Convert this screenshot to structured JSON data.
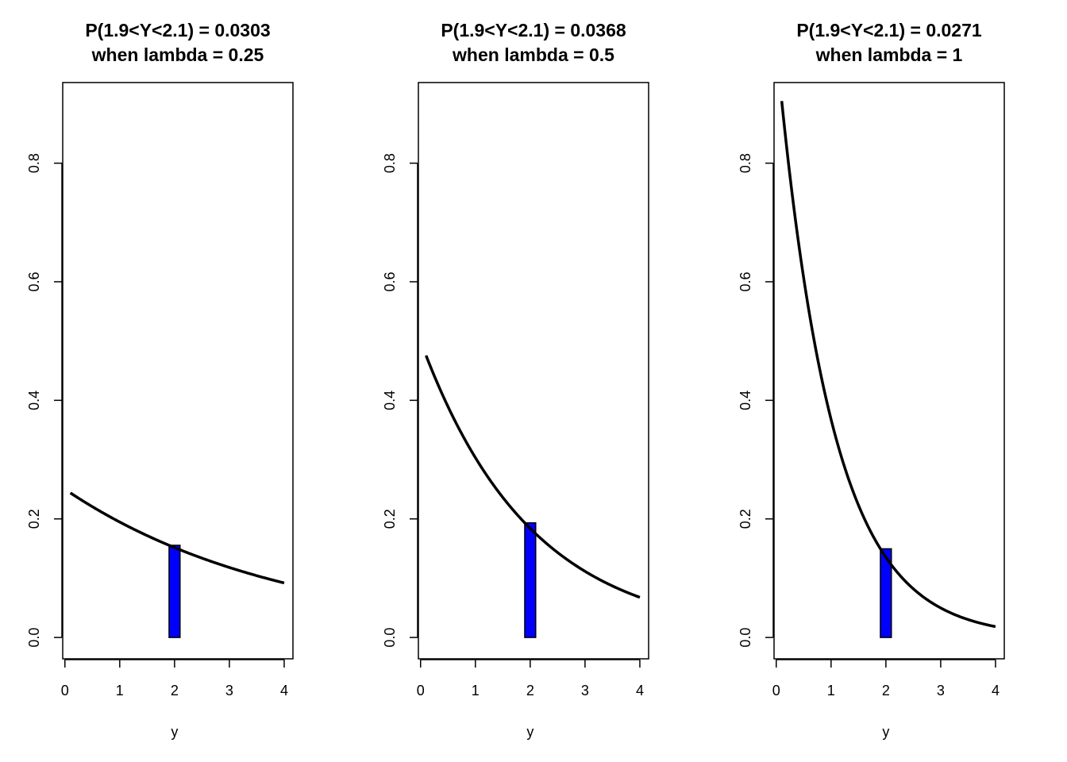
{
  "chart_data": [
    {
      "type": "line",
      "title": "P(1.9<Y<2.1) = 0.0303",
      "subtitle": "when lambda = 0.25",
      "lambda": 0.25,
      "xlabel": "y",
      "ylabel": "",
      "x_ticks": [
        "0",
        "1",
        "2",
        "3",
        "4"
      ],
      "y_ticks": [
        "0.0",
        "0.2",
        "0.4",
        "0.6",
        "0.8"
      ],
      "xlim": [
        -0.04,
        4.16
      ],
      "ylim": [
        -0.036,
        0.936
      ],
      "curve_x_range": [
        0.1,
        4.0
      ],
      "shaded_interval": {
        "from": 1.9,
        "to": 2.1,
        "color": "#0000ff"
      },
      "grid": false
    },
    {
      "type": "line",
      "title": "P(1.9<Y<2.1) = 0.0368",
      "subtitle": "when lambda = 0.5",
      "lambda": 0.5,
      "xlabel": "y",
      "ylabel": "",
      "x_ticks": [
        "0",
        "1",
        "2",
        "3",
        "4"
      ],
      "y_ticks": [
        "0.0",
        "0.2",
        "0.4",
        "0.6",
        "0.8"
      ],
      "xlim": [
        -0.04,
        4.16
      ],
      "ylim": [
        -0.036,
        0.936
      ],
      "curve_x_range": [
        0.1,
        4.0
      ],
      "shaded_interval": {
        "from": 1.9,
        "to": 2.1,
        "color": "#0000ff"
      },
      "grid": false
    },
    {
      "type": "line",
      "title": "P(1.9<Y<2.1) = 0.0271",
      "subtitle": "when lambda = 1",
      "lambda": 1,
      "xlabel": "y",
      "ylabel": "",
      "x_ticks": [
        "0",
        "1",
        "2",
        "3",
        "4"
      ],
      "y_ticks": [
        "0.0",
        "0.2",
        "0.4",
        "0.6",
        "0.8"
      ],
      "xlim": [
        -0.04,
        4.16
      ],
      "ylim": [
        -0.036,
        0.936
      ],
      "curve_x_range": [
        0.1,
        4.0
      ],
      "shaded_interval": {
        "from": 1.9,
        "to": 2.1,
        "color": "#0000ff"
      },
      "grid": false
    }
  ]
}
